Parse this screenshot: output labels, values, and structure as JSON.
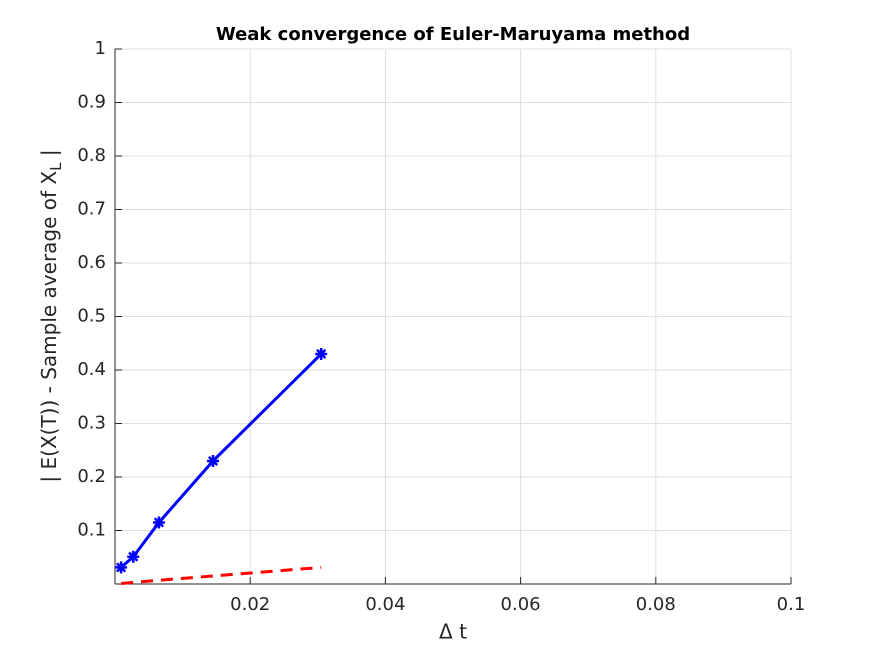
{
  "chart_data": {
    "type": "line",
    "title": "Weak convergence of Euler-Maruyama method",
    "xlabel": "Δ t",
    "ylabel": {
      "text": "| E(X(T)) - Sample average of X",
      "subscript": "L",
      "suffix": " |"
    },
    "x": [
      0.0009,
      0.0027,
      0.0065,
      0.0145,
      0.0305
    ],
    "series": [
      {
        "color": "#0000ff",
        "style": "solid",
        "marker": "star",
        "values": [
          0.031,
          0.051,
          0.115,
          0.23,
          0.43
        ]
      },
      {
        "color": "#ff0000",
        "style": "dashed",
        "values": [
          0.001,
          0.003,
          0.007,
          0.015,
          0.031
        ]
      }
    ],
    "xlim": [
      0,
      0.1
    ],
    "xticks": [
      0.02,
      0.04,
      0.06,
      0.08,
      0.1
    ],
    "ylim": [
      0,
      1
    ],
    "yticks": [
      0.1,
      0.2,
      0.3,
      0.4,
      0.5,
      0.6,
      0.7,
      0.8,
      0.9,
      1
    ],
    "grid": true
  }
}
